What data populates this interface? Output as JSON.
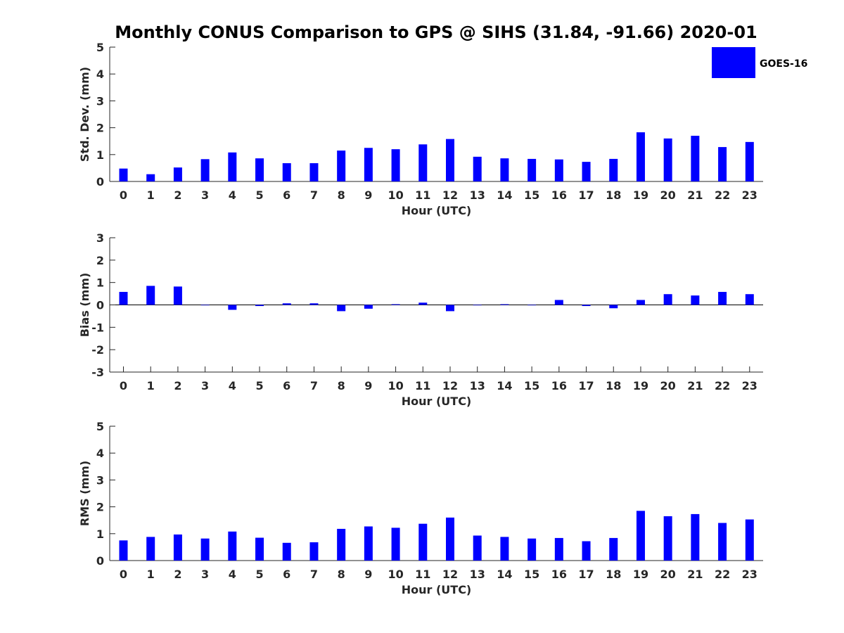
{
  "chart_data": {
    "title": "Monthly CONUS Comparison to GPS @ SIHS (31.84, -91.66) 2020-01",
    "legend": {
      "label": "GOES-16",
      "color": "#0000ff",
      "placement": "top-right"
    },
    "bar_color": "#0000ff",
    "categories": [
      "0",
      "1",
      "2",
      "3",
      "4",
      "5",
      "6",
      "7",
      "8",
      "9",
      "10",
      "11",
      "12",
      "13",
      "14",
      "15",
      "16",
      "17",
      "18",
      "19",
      "20",
      "21",
      "22",
      "23"
    ],
    "panels": [
      {
        "type": "bar",
        "ylabel": "Std. Dev. (mm)",
        "xlabel": "Hour (UTC)",
        "ylim": [
          0,
          5
        ],
        "yticks": [
          0,
          1,
          2,
          3,
          4,
          5
        ],
        "grid": false,
        "series": [
          {
            "name": "GOES-16",
            "values": [
              0.48,
              0.27,
              0.52,
              0.83,
              1.08,
              0.86,
              0.68,
              0.68,
              1.15,
              1.25,
              1.2,
              1.38,
              1.58,
              0.92,
              0.86,
              0.84,
              0.82,
              0.73,
              0.84,
              1.83,
              1.6,
              1.7,
              1.28,
              1.47
            ]
          }
        ]
      },
      {
        "type": "bar",
        "ylabel": "Bias (mm)",
        "xlabel": "Hour (UTC)",
        "ylim": [
          -3,
          3
        ],
        "yticks": [
          -3,
          -2,
          -1,
          0,
          1,
          2,
          3
        ],
        "grid": false,
        "series": [
          {
            "name": "GOES-16",
            "values": [
              0.58,
              0.85,
              0.82,
              -0.02,
              -0.22,
              -0.05,
              0.07,
              0.07,
              -0.28,
              -0.17,
              0.03,
              0.1,
              -0.28,
              -0.02,
              0.03,
              -0.02,
              0.22,
              -0.05,
              -0.15,
              0.22,
              0.48,
              0.42,
              0.58,
              0.48
            ]
          }
        ]
      },
      {
        "type": "bar",
        "ylabel": "RMS (mm)",
        "xlabel": "Hour (UTC)",
        "ylim": [
          0,
          5
        ],
        "yticks": [
          0,
          1,
          2,
          3,
          4,
          5
        ],
        "grid": false,
        "series": [
          {
            "name": "GOES-16",
            "values": [
              0.75,
              0.88,
              0.97,
              0.82,
              1.08,
              0.85,
              0.66,
              0.68,
              1.18,
              1.27,
              1.22,
              1.37,
              1.6,
              0.93,
              0.88,
              0.82,
              0.84,
              0.72,
              0.84,
              1.85,
              1.65,
              1.73,
              1.4,
              1.53
            ]
          }
        ]
      }
    ]
  }
}
